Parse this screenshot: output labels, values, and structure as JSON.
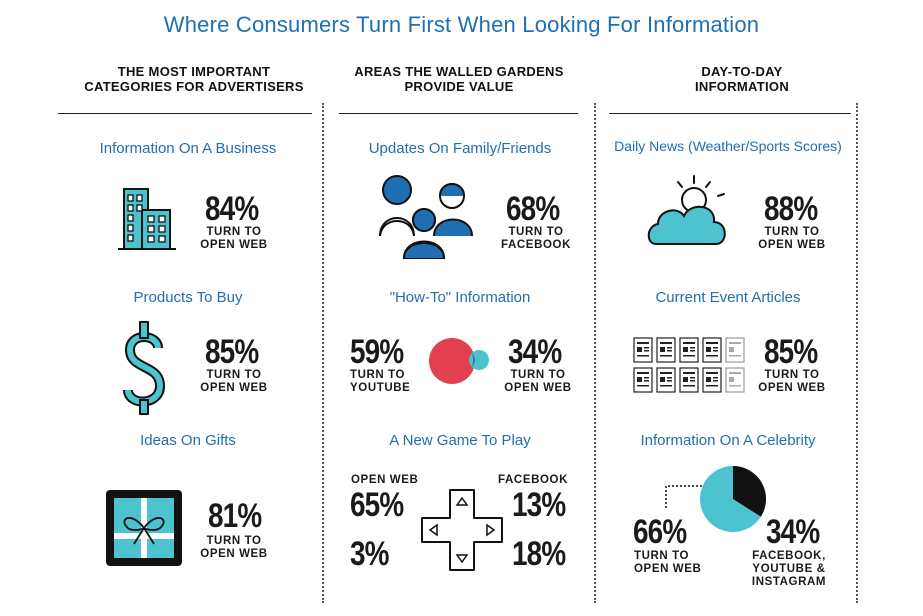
{
  "title": "Where Consumers Turn First When Looking For Information",
  "columns": [
    {
      "heading_l1": "THE MOST IMPORTANT",
      "heading_l2": "CATEGORIES FOR ADVERTISERS",
      "items": [
        {
          "label": "Information On A Business",
          "value": "84%",
          "cap_l1": "TURN TO",
          "cap_l2": "OPEN WEB",
          "icon": "building-icon"
        },
        {
          "label": "Products To Buy",
          "value": "85%",
          "cap_l1": "TURN TO",
          "cap_l2": "OPEN WEB",
          "icon": "dollar-sign-icon"
        },
        {
          "label": "Ideas On Gifts",
          "value": "81%",
          "cap_l1": "TURN TO",
          "cap_l2": "OPEN WEB",
          "icon": "gift-box-icon"
        }
      ]
    },
    {
      "heading_l1": "AREAS THE WALLED GARDENS",
      "heading_l2": "PROVIDE VALUE",
      "items": [
        {
          "label": "Updates On Family/Friends",
          "value": "68%",
          "cap_l1": "TURN TO",
          "cap_l2": "FACEBOOK",
          "icon": "people-group-icon"
        },
        {
          "label": "\"How-To\" Information",
          "left_value": "59%",
          "left_cap_l1": "TURN TO",
          "left_cap_l2": "YOUTUBE",
          "right_value": "34%",
          "right_cap_l1": "TURN TO",
          "right_cap_l2": "OPEN WEB",
          "icon": "overlapping-circles-icon"
        },
        {
          "label": "A New Game To Play",
          "tl_label": "OPEN WEB",
          "tl_value": "65%",
          "bl_value": "3%",
          "tr_label": "FACEBOOK",
          "tr_value": "13%",
          "br_value": "18%",
          "icon": "game-controller-dpad-icon"
        }
      ]
    },
    {
      "heading_l1": "DAY-TO-DAY",
      "heading_l2": "INFORMATION",
      "items": [
        {
          "label": "Daily News (Weather/Sports Scores)",
          "value": "88%",
          "cap_l1": "TURN TO",
          "cap_l2": "OPEN WEB",
          "icon": "cloud-sun-icon"
        },
        {
          "label": "Current Event Articles",
          "value": "85%",
          "cap_l1": "TURN TO",
          "cap_l2": "OPEN WEB",
          "icon": "newspaper-grid-icon"
        },
        {
          "label": "Information On A Celebrity",
          "left_value": "66%",
          "left_cap_l1": "TURN TO",
          "left_cap_l2": "OPEN WEB",
          "right_value": "34%",
          "right_cap_l1": "FACEBOOK,",
          "right_cap_l2": "YOUTUBE &",
          "right_cap_l3": "INSTAGRAM",
          "icon": "pie-chart-icon",
          "pie_open_web_share": 0.66
        }
      ]
    }
  ],
  "colors": {
    "accent_blue": "#1f6fb2",
    "teal": "#4ec3d0",
    "red": "#e2404f",
    "dark": "#1a1a1a"
  }
}
